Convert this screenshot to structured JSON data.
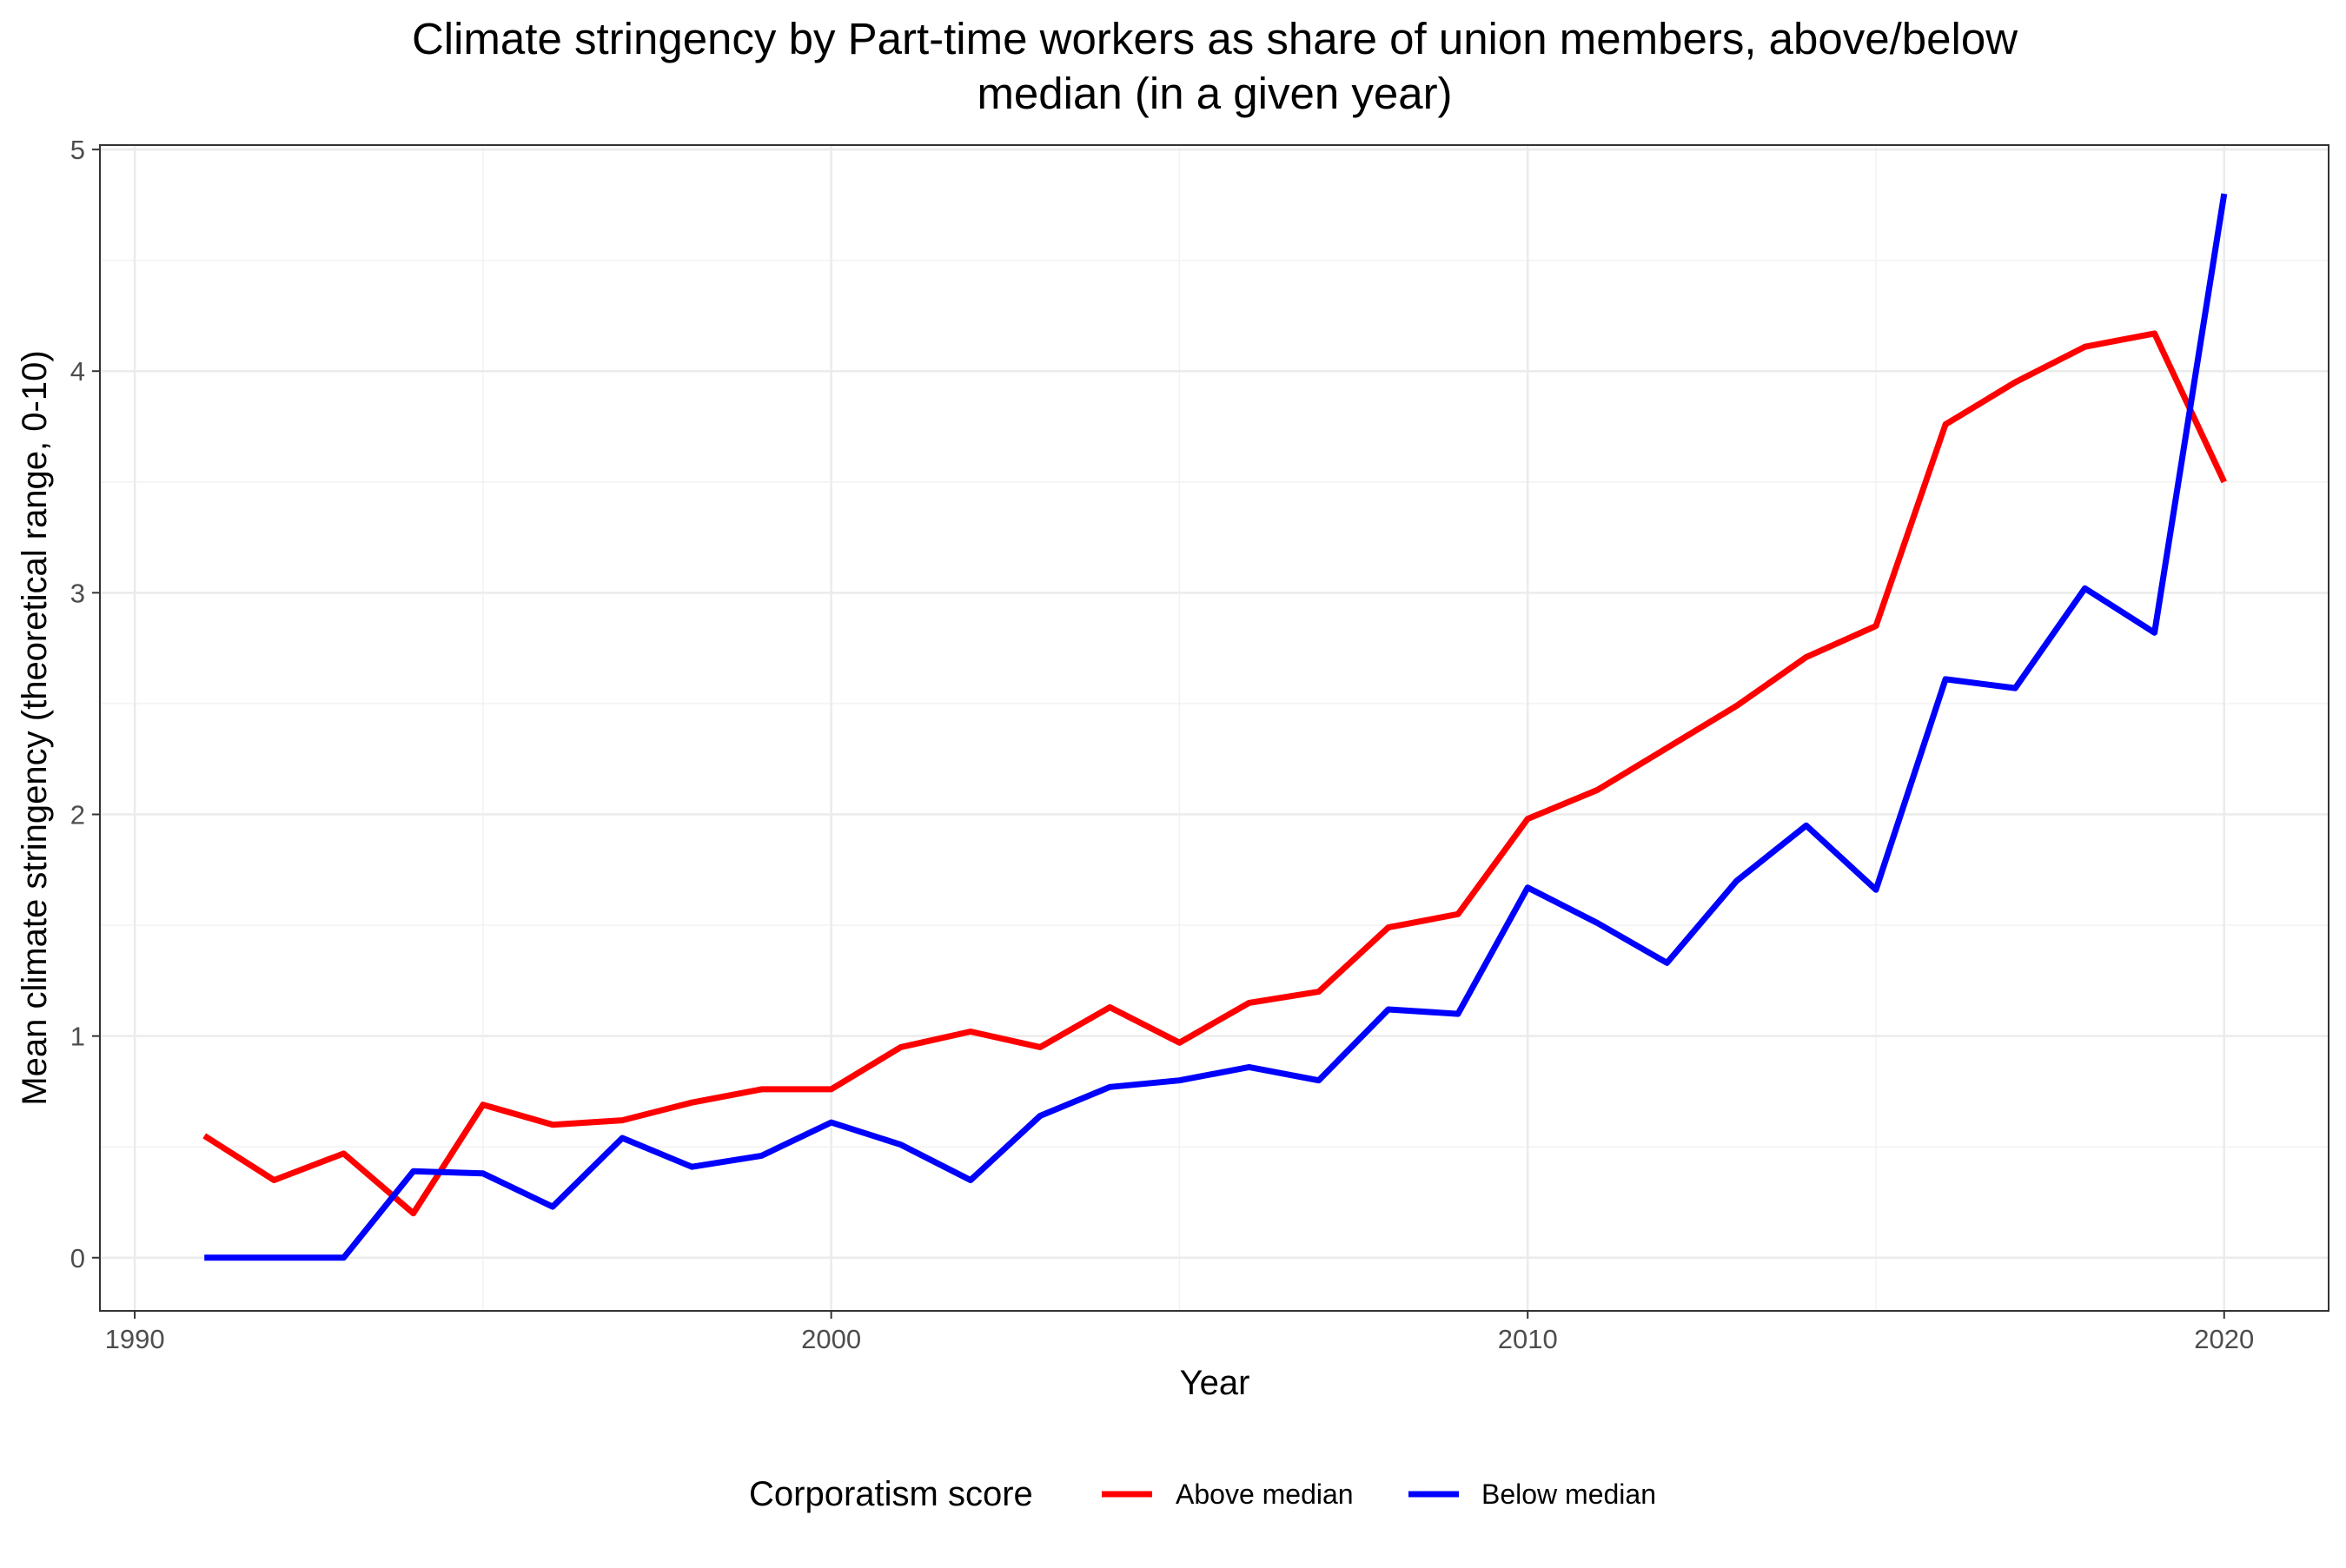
{
  "chart_data": {
    "type": "line",
    "title_lines": [
      "Climate stringency by Part-time workers as share of union members, above/below",
      "median (in a given year)"
    ],
    "xlabel": "Year",
    "ylabel": "Mean climate stringency (theoretical range, 0-10)",
    "xlim": [
      1989.5,
      2021.5
    ],
    "ylim": [
      -0.24,
      5.02
    ],
    "x_ticks": [
      1990,
      2000,
      2010,
      2020
    ],
    "y_ticks": [
      0,
      1,
      2,
      3,
      4,
      5
    ],
    "grid": true,
    "legend": {
      "title": "Corporatism score",
      "position": "bottom"
    },
    "x": [
      1991,
      1992,
      1993,
      1994,
      1995,
      1996,
      1997,
      1998,
      1999,
      2000,
      2001,
      2002,
      2003,
      2004,
      2005,
      2006,
      2007,
      2008,
      2009,
      2010,
      2011,
      2012,
      2013,
      2014,
      2015,
      2016,
      2017,
      2018,
      2019,
      2020
    ],
    "series": [
      {
        "name": "Above median",
        "color": "#ff0000",
        "values": [
          0.55,
          0.35,
          0.47,
          0.2,
          0.69,
          0.6,
          0.62,
          0.7,
          0.76,
          0.76,
          0.95,
          1.02,
          0.95,
          1.13,
          0.97,
          1.15,
          1.2,
          1.49,
          1.55,
          1.98,
          2.11,
          2.3,
          2.49,
          2.71,
          2.85,
          3.76,
          3.95,
          4.11,
          4.17,
          3.5
        ]
      },
      {
        "name": "Below median",
        "color": "#0000ff",
        "values": [
          0.0,
          0.0,
          0.0,
          0.39,
          0.38,
          0.23,
          0.54,
          0.41,
          0.46,
          0.61,
          0.51,
          0.35,
          0.64,
          0.77,
          0.8,
          0.86,
          0.8,
          1.12,
          1.1,
          1.67,
          1.51,
          1.33,
          1.7,
          1.95,
          1.66,
          2.61,
          2.57,
          3.02,
          2.82,
          4.8
        ]
      }
    ]
  }
}
